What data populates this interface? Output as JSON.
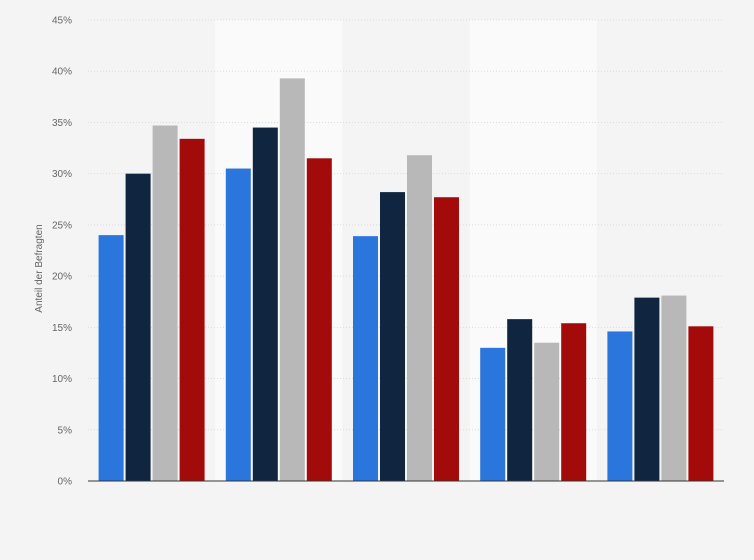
{
  "chart_data": {
    "type": "bar",
    "categories": [
      "",
      "",
      "",
      "",
      ""
    ],
    "series": [
      {
        "color": "#2a76dd",
        "values": [
          24.0,
          30.5,
          23.9,
          13.0,
          14.6
        ]
      },
      {
        "color": "#0f2540",
        "values": [
          30.0,
          34.5,
          28.2,
          15.8,
          17.9
        ]
      },
      {
        "color": "#b8b8b8",
        "values": [
          34.7,
          39.3,
          31.8,
          13.5,
          18.1
        ]
      },
      {
        "color": "#a30a0a",
        "values": [
          33.4,
          31.5,
          27.7,
          15.4,
          15.1
        ]
      }
    ],
    "ylabel": "Anteil der Befragten",
    "ylim": [
      0,
      45
    ],
    "yticks": [
      0,
      5,
      10,
      15,
      20,
      25,
      30,
      35,
      40,
      45
    ],
    "ytick_suffix": "%",
    "grid": true,
    "legend": "none"
  }
}
